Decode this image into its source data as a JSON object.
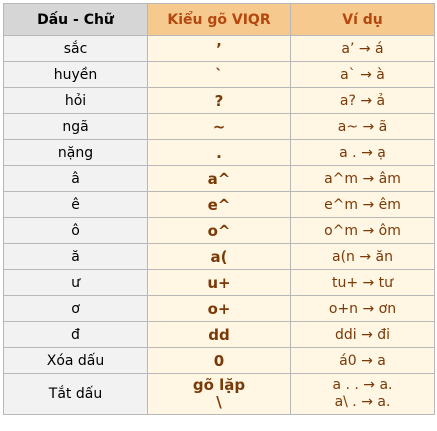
{
  "headers": [
    "Dấu - Chữ",
    "Kiểu gõ VIQR",
    "Ví dụ"
  ],
  "rows": [
    {
      "mark": "sắc",
      "key": "’",
      "example": "a’  →  á"
    },
    {
      "mark": "huyền",
      "key": "`",
      "example": "a`  →  à"
    },
    {
      "mark": "hỏi",
      "key": "?",
      "example": "a?  →  ả"
    },
    {
      "mark": "ngã",
      "key": "~",
      "example": "a~  →  ã"
    },
    {
      "mark": "nặng",
      "key": ".",
      "example": "a .   →  ạ"
    },
    {
      "mark": "â",
      "key": "a^",
      "example": "a^m  →  âm"
    },
    {
      "mark": "ê",
      "key": "e^",
      "example": "e^m  →  êm"
    },
    {
      "mark": "ô",
      "key": "o^",
      "example": "o^m  →  ôm"
    },
    {
      "mark": "ă",
      "key": "a(",
      "example": "a(n  →  ăn"
    },
    {
      "mark": "ư",
      "key": "u+",
      "example": "tu+   →  tư"
    },
    {
      "mark": "ơ",
      "key": "o+",
      "example": "o+n  →  ơn"
    },
    {
      "mark": "đ",
      "key": "dd",
      "example": "ddi  →  đi"
    },
    {
      "mark": "Xóa dấu",
      "key": "0",
      "example": "á0 → a"
    },
    {
      "mark": "Tắt dấu",
      "key_lines": [
        "gõ lặp",
        "\\"
      ],
      "example_lines": [
        "a . . → a.",
        "a\\ . → a."
      ]
    }
  ]
}
